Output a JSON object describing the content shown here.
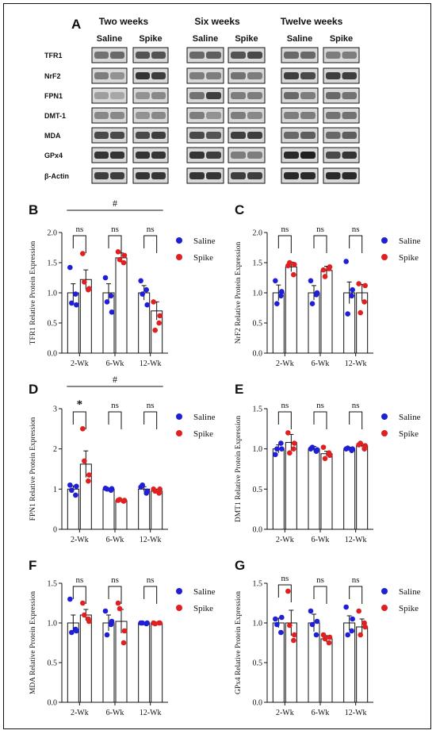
{
  "blot": {
    "letter": "A",
    "timepoints": [
      "Two weeks",
      "Six weeks",
      "Twelve weeks"
    ],
    "groups": [
      "Saline",
      "Spike"
    ],
    "proteins": [
      "TFR1",
      "NrF2",
      "FPN1",
      "DMT-1",
      "MDA",
      "GPx4",
      "β-Actin"
    ]
  },
  "chart_data": [
    {
      "panel": "B",
      "type": "bar",
      "categories": [
        "2-Wk",
        "6-Wk",
        "12-Wk"
      ],
      "ylabel": "TFR1 Relative Protein Expression",
      "ylim": [
        0,
        2.0
      ],
      "yticks": [
        "0.0",
        "0.5",
        "1.0",
        "1.5",
        "2.0"
      ],
      "series": [
        {
          "name": "Saline",
          "color": "#1f1fd6",
          "values": [
            1.0,
            1.0,
            1.0
          ],
          "err": [
            0.15,
            0.15,
            0.12
          ],
          "points": [
            [
              1.42,
              0.98,
              0.83,
              0.8
            ],
            [
              1.25,
              0.95,
              0.85,
              0.68
            ],
            [
              1.2,
              1.05,
              0.98,
              0.8
            ]
          ]
        },
        {
          "name": "Spike",
          "color": "#e02020",
          "values": [
            1.22,
            1.58,
            0.7
          ],
          "err": [
            0.16,
            0.08,
            0.15
          ],
          "points": [
            [
              1.65,
              1.05,
              1.18,
              1.07
            ],
            [
              1.68,
              1.5,
              1.55,
              1.62
            ],
            [
              0.85,
              0.5,
              0.38,
              0.62
            ]
          ]
        }
      ],
      "comparisons": [
        "ns",
        "ns",
        "ns"
      ],
      "overall": "#",
      "legend": "right"
    },
    {
      "panel": "C",
      "type": "bar",
      "categories": [
        "2-Wk",
        "6-Wk",
        "12-Wk"
      ],
      "ylabel": "NrF2 Relative Protein Expression",
      "ylim": [
        0,
        2.0
      ],
      "yticks": [
        "0.0",
        "0.5",
        "1.0",
        "1.5",
        "2.0"
      ],
      "series": [
        {
          "name": "Saline",
          "color": "#1f1fd6",
          "values": [
            1.0,
            1.0,
            1.0
          ],
          "err": [
            0.13,
            0.12,
            0.18
          ],
          "points": [
            [
              1.2,
              0.95,
              0.82,
              1.02
            ],
            [
              1.2,
              0.97,
              0.82,
              1.0
            ],
            [
              1.52,
              0.95,
              0.65,
              1.05
            ]
          ]
        },
        {
          "name": "Spike",
          "color": "#e02020",
          "values": [
            1.43,
            1.37,
            1.0
          ],
          "err": [
            0.08,
            0.07,
            0.14
          ],
          "points": [
            [
              1.45,
              1.3,
              1.5,
              1.47
            ],
            [
              1.38,
              1.4,
              1.27,
              1.43
            ],
            [
              1.15,
              0.85,
              0.67,
              1.12
            ]
          ]
        }
      ],
      "comparisons": [
        "ns",
        "ns",
        "ns"
      ],
      "overall": "",
      "legend": "right"
    },
    {
      "panel": "D",
      "type": "bar",
      "categories": [
        "2-Wk",
        "6-Wk",
        "12-Wk"
      ],
      "ylabel": "FPN1 Relative Protein Expression",
      "ylim": [
        0,
        3
      ],
      "yticks": [
        "0",
        "1",
        "2",
        "3"
      ],
      "series": [
        {
          "name": "Saline",
          "color": "#1f1fd6",
          "values": [
            1.0,
            1.0,
            1.0
          ],
          "err": [
            0.08,
            0.02,
            0.06
          ],
          "points": [
            [
              1.1,
              0.85,
              0.97,
              1.07
            ],
            [
              1.02,
              0.97,
              1.0,
              1.01
            ],
            [
              1.05,
              0.9,
              1.1,
              0.95
            ]
          ]
        },
        {
          "name": "Spike",
          "color": "#e02020",
          "values": [
            1.62,
            0.72,
            0.95
          ],
          "err": [
            0.33,
            0.02,
            0.05
          ],
          "points": [
            [
              2.5,
              1.2,
              1.7,
              1.35
            ],
            [
              0.72,
              0.7,
              0.74,
              0.72
            ],
            [
              1.0,
              0.9,
              0.95,
              1.0
            ]
          ]
        }
      ],
      "comparisons": [
        "*",
        "ns",
        "ns"
      ],
      "overall": "#",
      "legend": "right"
    },
    {
      "panel": "E",
      "type": "bar",
      "categories": [
        "2-Wk",
        "6-Wk",
        "12-Wk"
      ],
      "ylabel": "DMT1 Relative Protein Expression",
      "ylim": [
        0,
        1.5
      ],
      "yticks": [
        "0.0",
        "0.5",
        "1.0",
        "1.5"
      ],
      "series": [
        {
          "name": "Saline",
          "color": "#1f1fd6",
          "values": [
            1.0,
            1.0,
            1.0
          ],
          "err": [
            0.05,
            0.03,
            0.02
          ],
          "points": [
            [
              0.93,
              1.07,
              1.0,
              1.0
            ],
            [
              1.0,
              0.97,
              1.02,
              0.99
            ],
            [
              1.0,
              0.98,
              1.01,
              1.0
            ]
          ]
        },
        {
          "name": "Spike",
          "color": "#e02020",
          "values": [
            1.08,
            0.94,
            1.04
          ],
          "err": [
            0.1,
            0.03,
            0.02
          ],
          "points": [
            [
              1.2,
              1.0,
              0.95,
              1.07
            ],
            [
              1.02,
              0.95,
              0.88,
              0.92
            ],
            [
              1.05,
              1.0,
              1.07,
              1.04
            ]
          ]
        }
      ],
      "comparisons": [
        "ns",
        "ns",
        "ns"
      ],
      "overall": "",
      "legend": "right"
    },
    {
      "panel": "F",
      "type": "bar",
      "categories": [
        "2-Wk",
        "6-Wk",
        "12-Wk"
      ],
      "ylabel": "MDA Relative Protein Expression",
      "ylim": [
        0,
        1.5
      ],
      "yticks": [
        "0.0",
        "0.5",
        "1.0",
        "1.5"
      ],
      "series": [
        {
          "name": "Saline",
          "color": "#1f1fd6",
          "values": [
            1.0,
            1.0,
            1.0
          ],
          "err": [
            0.1,
            0.1,
            0.01
          ],
          "points": [
            [
              1.3,
              0.92,
              0.88,
              0.9
            ],
            [
              1.15,
              0.98,
              0.85,
              1.02
            ],
            [
              1.0,
              0.99,
              1.0,
              1.0
            ]
          ]
        },
        {
          "name": "Spike",
          "color": "#e02020",
          "values": [
            1.1,
            1.02,
            1.0
          ],
          "err": [
            0.07,
            0.15,
            0.01
          ],
          "points": [
            [
              1.25,
              1.05,
              1.1,
              1.02
            ],
            [
              1.25,
              0.75,
              1.18,
              0.9
            ],
            [
              1.0,
              1.0,
              0.99,
              1.0
            ]
          ]
        }
      ],
      "comparisons": [
        "ns",
        "ns",
        "ns"
      ],
      "overall": "",
      "legend": "right"
    },
    {
      "panel": "G",
      "type": "bar",
      "categories": [
        "2-Wk",
        "6-Wk",
        "12-Wk"
      ],
      "ylabel": "GPx4 Relative Protein Expression",
      "ylim": [
        0,
        1.5
      ],
      "yticks": [
        "0.0",
        "0.5",
        "1.0",
        "1.5"
      ],
      "series": [
        {
          "name": "Saline",
          "color": "#1f1fd6",
          "values": [
            1.0,
            1.0,
            1.0
          ],
          "err": [
            0.06,
            0.11,
            0.09
          ],
          "points": [
            [
              1.05,
              0.88,
              0.98,
              1.07
            ],
            [
              1.15,
              0.85,
              0.98,
              1.02
            ],
            [
              1.2,
              0.9,
              0.85,
              1.05
            ]
          ]
        },
        {
          "name": "Spike",
          "color": "#e02020",
          "values": [
            1.0,
            0.8,
            0.95
          ],
          "err": [
            0.16,
            0.04,
            0.1
          ],
          "points": [
            [
              1.4,
              0.78,
              0.97,
              0.85
            ],
            [
              0.85,
              0.75,
              0.8,
              0.82
            ],
            [
              1.15,
              1.0,
              0.85,
              0.95
            ]
          ]
        }
      ],
      "comparisons": [
        "ns",
        "ns",
        "ns"
      ],
      "overall": "",
      "legend": "right"
    }
  ]
}
